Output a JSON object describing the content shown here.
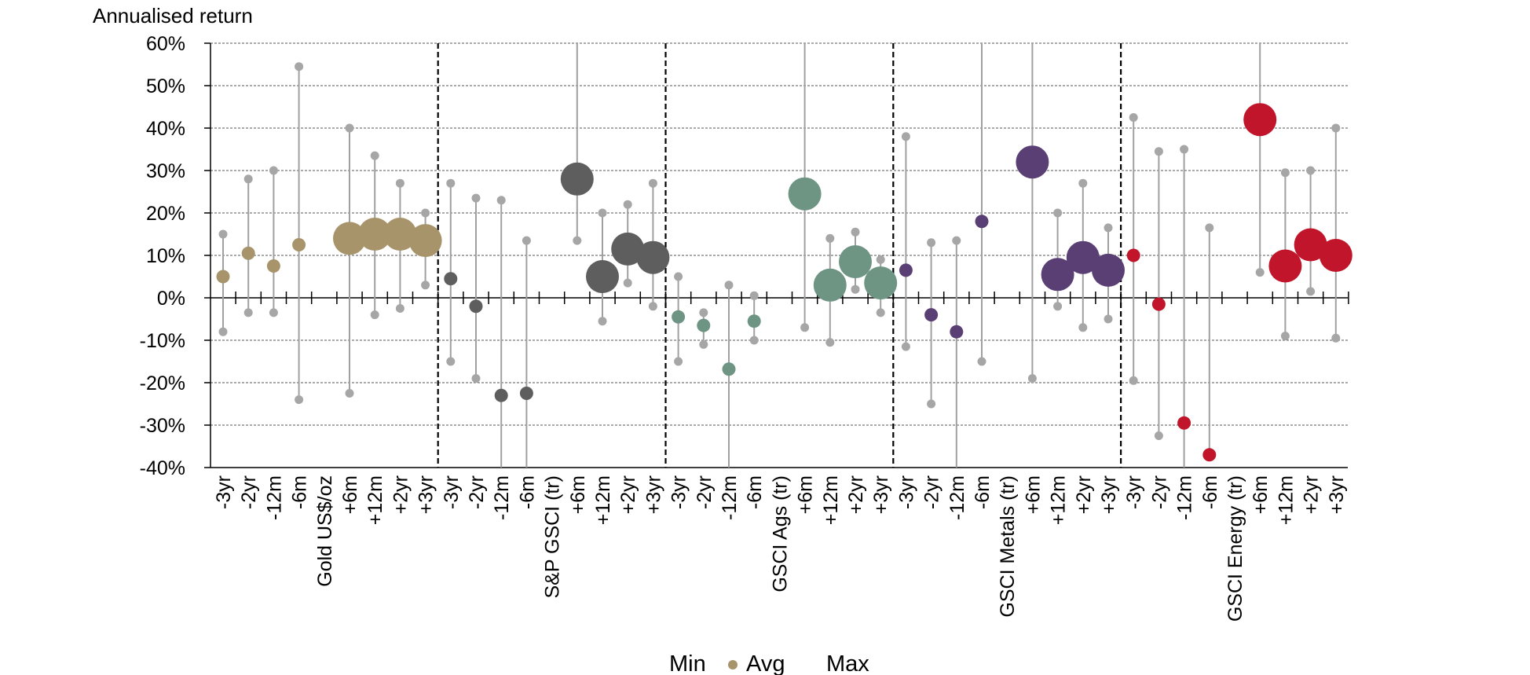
{
  "chart_data": {
    "type": "scatter",
    "ylabel": "Annualised return",
    "ylim": [
      -40,
      60
    ],
    "y_ticks": [
      "-40%",
      "-30%",
      "-20%",
      "-10%",
      "0%",
      "10%",
      "20%",
      "30%",
      "40%",
      "50%",
      "60%"
    ],
    "grid": true,
    "legend": {
      "position": "bottom",
      "entries": [
        "Min",
        "Avg",
        "Max"
      ]
    },
    "groups": [
      {
        "name": "Gold US$/oz",
        "color": "#a8946a",
        "points": [
          {
            "label": "-3yr",
            "min": -8,
            "avg": 5,
            "max": 15
          },
          {
            "label": "-2yr",
            "min": -3.5,
            "avg": 10.5,
            "max": 28
          },
          {
            "label": "-12m",
            "min": -3.5,
            "avg": 7.5,
            "max": 30
          },
          {
            "label": "-6m",
            "min": -24,
            "avg": 12.5,
            "max": 54.5
          },
          {
            "label": "+6m",
            "min": -22.5,
            "avg": 14,
            "max": 40
          },
          {
            "label": "+12m",
            "min": -4,
            "avg": 15,
            "max": 33.5
          },
          {
            "label": "+2yr",
            "min": -2.5,
            "avg": 15,
            "max": 27
          },
          {
            "label": "+3yr",
            "min": 3,
            "avg": 13.5,
            "max": 20
          }
        ]
      },
      {
        "name": "S&P GSCI (tr)",
        "color": "#5e5e5e",
        "points": [
          {
            "label": "-3yr",
            "min": -15,
            "avg": 4.5,
            "max": 27
          },
          {
            "label": "-2yr",
            "min": -19,
            "avg": -2,
            "max": 23.5
          },
          {
            "label": "-12m",
            "min": -40,
            "avg": -23,
            "max": 23
          },
          {
            "label": "-6m",
            "min": -40,
            "avg": -22.5,
            "max": 13.5
          },
          {
            "label": "+6m",
            "min": 13.5,
            "avg": 28,
            "max": 60
          },
          {
            "label": "+12m",
            "min": -5.5,
            "avg": 5,
            "max": 20
          },
          {
            "label": "+2yr",
            "min": 3.5,
            "avg": 11.5,
            "max": 22
          },
          {
            "label": "+3yr",
            "min": -2,
            "avg": 9.5,
            "max": 27
          }
        ]
      },
      {
        "name": "GSCI Ags (tr)",
        "color": "#6e9484",
        "points": [
          {
            "label": "-3yr",
            "min": -15,
            "avg": -4.5,
            "max": 5
          },
          {
            "label": "-2yr",
            "min": -11,
            "avg": -6.5,
            "max": -3.5
          },
          {
            "label": "-12m",
            "min": -40,
            "avg": -16.8,
            "max": 3
          },
          {
            "label": "-6m",
            "min": -10,
            "avg": -5.5,
            "max": 0.5
          },
          {
            "label": "+6m",
            "min": -7,
            "avg": 24.5,
            "max": 60
          },
          {
            "label": "+12m",
            "min": -10.5,
            "avg": 3,
            "max": 14
          },
          {
            "label": "+2yr",
            "min": 2,
            "avg": 8.5,
            "max": 15.5
          },
          {
            "label": "+3yr",
            "min": -3.5,
            "avg": 3.5,
            "max": 9
          }
        ]
      },
      {
        "name": "GSCI Metals (tr)",
        "color": "#5a3f75",
        "points": [
          {
            "label": "-3yr",
            "min": -11.5,
            "avg": 6.5,
            "max": 38
          },
          {
            "label": "-2yr",
            "min": -25,
            "avg": -4,
            "max": 13
          },
          {
            "label": "-12m",
            "min": -40,
            "avg": -8,
            "max": 13.5
          },
          {
            "label": "-6m",
            "min": -15,
            "avg": 18,
            "max": 60
          },
          {
            "label": "+6m",
            "min": -19,
            "avg": 32,
            "max": 60
          },
          {
            "label": "+12m",
            "min": -2,
            "avg": 5.5,
            "max": 20
          },
          {
            "label": "+2yr",
            "min": -7,
            "avg": 9.5,
            "max": 27
          },
          {
            "label": "+3yr",
            "min": -5,
            "avg": 6.5,
            "max": 16.5
          }
        ]
      },
      {
        "name": "GSCI Energy (tr)",
        "color": "#c0152a",
        "points": [
          {
            "label": "-3yr",
            "min": -19.5,
            "avg": 10,
            "max": 42.5
          },
          {
            "label": "-2yr",
            "min": -32.5,
            "avg": -1.5,
            "max": 34.5
          },
          {
            "label": "-12m",
            "min": -40,
            "avg": -29.5,
            "max": 35
          },
          {
            "label": "-6m",
            "min": -37,
            "avg": -37,
            "max": 16.5
          },
          {
            "label": "+6m",
            "min": 6,
            "avg": 42,
            "max": 60
          },
          {
            "label": "+12m",
            "min": -9,
            "avg": 7.5,
            "max": 29.5
          },
          {
            "label": "+2yr",
            "min": 1.5,
            "avg": 12.5,
            "max": 30
          },
          {
            "label": "+3yr",
            "min": -9.5,
            "avg": 10,
            "max": 40
          }
        ]
      }
    ]
  }
}
